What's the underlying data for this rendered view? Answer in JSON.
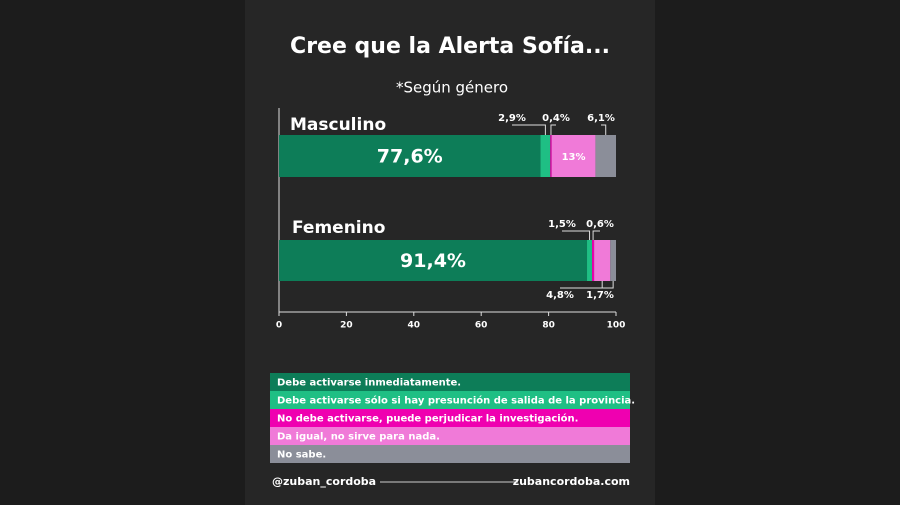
{
  "chart_data": {
    "type": "stacked-bar-horizontal",
    "title": "Cree que la Alerta Sofía...",
    "subtitle": "*Según género",
    "categories": [
      "Masculino",
      "Femenino"
    ],
    "series": [
      {
        "name": "Debe activarse inmediatamente.",
        "color": "#0d7d58",
        "values": [
          77.6,
          91.4
        ],
        "value_labels": [
          "77,6%",
          "91,4%"
        ]
      },
      {
        "name": "Debe activarse sólo si hay presunción de salida de la provincia.",
        "color": "#1fbf84",
        "values": [
          2.9,
          1.5
        ],
        "value_labels": [
          "2,9%",
          "1,5%"
        ]
      },
      {
        "name": "No debe activarse, puede perjudicar la investigación.",
        "color": "#ef00b0",
        "values": [
          0.4,
          0.6
        ],
        "value_labels": [
          "0,4%",
          "0,6%"
        ]
      },
      {
        "name": "Da igual, no sirve para nada.",
        "color": "#f07ad8",
        "values": [
          13,
          4.8
        ],
        "value_labels": [
          "13%",
          "4,8%"
        ]
      },
      {
        "name": "No sabe.",
        "color": "#8b8e99",
        "values": [
          6.1,
          1.7
        ],
        "value_labels": [
          "6,1%",
          "1,7%"
        ]
      }
    ],
    "xlim": [
      0,
      100
    ],
    "xticks": [
      0,
      20,
      40,
      60,
      80,
      100
    ]
  },
  "footer": {
    "left": "@zuban_cordoba",
    "right": "zubancordoba.com"
  }
}
